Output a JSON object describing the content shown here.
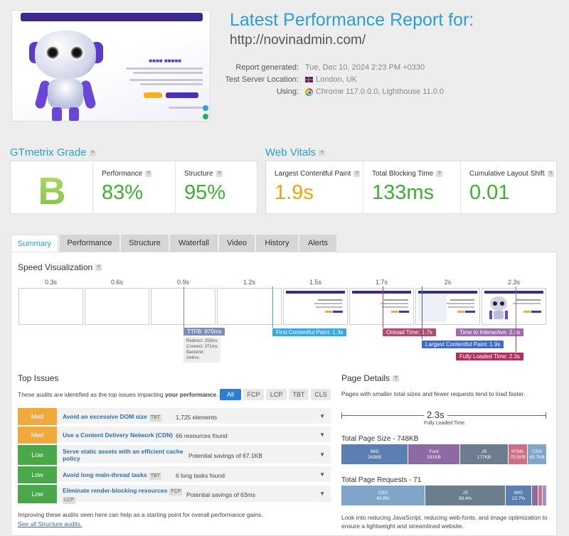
{
  "header": {
    "title": "Latest Performance Report for:",
    "url": "http://novinadmin.com/",
    "meta": [
      {
        "label": "Report generated:",
        "value": "Tue, Dec 10, 2024 2:23 PM +0330"
      },
      {
        "label": "Test Server Location:",
        "value": "London, UK"
      },
      {
        "label": "Using:",
        "value": "Chrome 117.0.0.0, Lighthouse 11.0.0"
      }
    ]
  },
  "grade": {
    "title": "GTmetrix Grade",
    "letter": "B",
    "perf_label": "Performance",
    "perf": "83%",
    "struct_label": "Structure",
    "struct": "95%"
  },
  "vitals": {
    "title": "Web Vitals",
    "lcp_label": "Largest Contentful Paint",
    "lcp": "1.9s",
    "tbt_label": "Total Blocking Time",
    "tbt": "133ms",
    "cls_label": "Cumulative Layout Shift",
    "cls": "0.01"
  },
  "tabs": [
    "Summary",
    "Performance",
    "Structure",
    "Waterfall",
    "Video",
    "History",
    "Alerts"
  ],
  "speed": {
    "title": "Speed Visualization",
    "times": [
      "0.3s",
      "0.6s",
      "0.9s",
      "1.2s",
      "1.5s",
      "1.7s",
      "2s",
      "2.3s"
    ],
    "ttfb": "TTFB: 870ms",
    "redirect": "Redirect: 255ms",
    "connect": "Connect: 371ms",
    "backend": "Backend: 244ms",
    "fcp": "First Contentful Paint: 1.3s",
    "onload": "Onload Time: 1.7s",
    "tti": "Time to Interactive: 2.3s",
    "lcp": "Largest Contentful Paint: 1.9s",
    "flt": "Fully Loaded Time: 2.3s"
  },
  "issues": {
    "title": "Top Issues",
    "intro": "These audits are identified as the top issues impacting",
    "intro_bold": "your performance",
    "filters": [
      "All",
      "FCP",
      "LCP",
      "TBT",
      "CLS"
    ],
    "rows": [
      {
        "sev": "Med",
        "title": "Avoid an excessive DOM size",
        "tags": [
          "TBT"
        ],
        "value": "1,725 elements"
      },
      {
        "sev": "Med",
        "title": "Use a Content Delivery Network (CDN)",
        "tags": [],
        "value": "66 resources found"
      },
      {
        "sev": "Low",
        "title": "Serve static assets with an efficient cache policy",
        "tags": [],
        "value": "Potential savings of 67.1KB"
      },
      {
        "sev": "Low",
        "title": "Avoid long main-thread tasks",
        "tags": [
          "TBT"
        ],
        "value": "6 long tasks found"
      },
      {
        "sev": "Low",
        "title": "Eliminate render-blocking resources",
        "tags": [
          "FCP",
          "LCP"
        ],
        "value": "Potential savings of 63ms"
      }
    ],
    "footer": "Improving these audits seen here can help as a starting point for overall performance gains.",
    "link": "See all Structure audits."
  },
  "details": {
    "title": "Page Details",
    "intro": "Pages with smaller total sizes and fewer requests tend to load faster.",
    "flt": "2.3s",
    "flt_label": "Fully Loaded Time",
    "size_title": "Total Page Size - 748KB",
    "size": [
      {
        "name": "IMG",
        "v": "243KB",
        "frac": 0.325,
        "color": "#5b7fb0"
      },
      {
        "name": "Font",
        "v": "191KB",
        "frac": 0.255,
        "color": "#8e6aa5"
      },
      {
        "name": "JS",
        "v": "177KB",
        "frac": 0.237,
        "color": "#6b7d8f"
      },
      {
        "name": "HTML",
        "v": "70.5KB",
        "frac": 0.094,
        "color": "#d06e86"
      },
      {
        "name": "CSS",
        "v": "65.7KB",
        "frac": 0.088,
        "color": "#7fa6c9"
      }
    ],
    "req_title": "Total Page Requests - 71",
    "req": [
      {
        "name": "CSS",
        "v": "40.8%",
        "frac": 0.408,
        "color": "#7fa6c9"
      },
      {
        "name": "JS",
        "v": "39.4%",
        "frac": 0.394,
        "color": "#6b7d8f"
      },
      {
        "name": "IMG",
        "v": "12.7%",
        "frac": 0.127,
        "color": "#5b7fb0"
      },
      {
        "name": "",
        "v": "",
        "frac": 0.03,
        "color": "#8e6aa5"
      },
      {
        "name": "",
        "v": "",
        "frac": 0.02,
        "color": "#d06e86"
      },
      {
        "name": "",
        "v": "",
        "frac": 0.021,
        "color": "#a68fc0"
      }
    ],
    "footer": "Look into reducing JavaScript, reducing web-fonts, and image optimization to ensure a lightweight and streamlined website."
  }
}
